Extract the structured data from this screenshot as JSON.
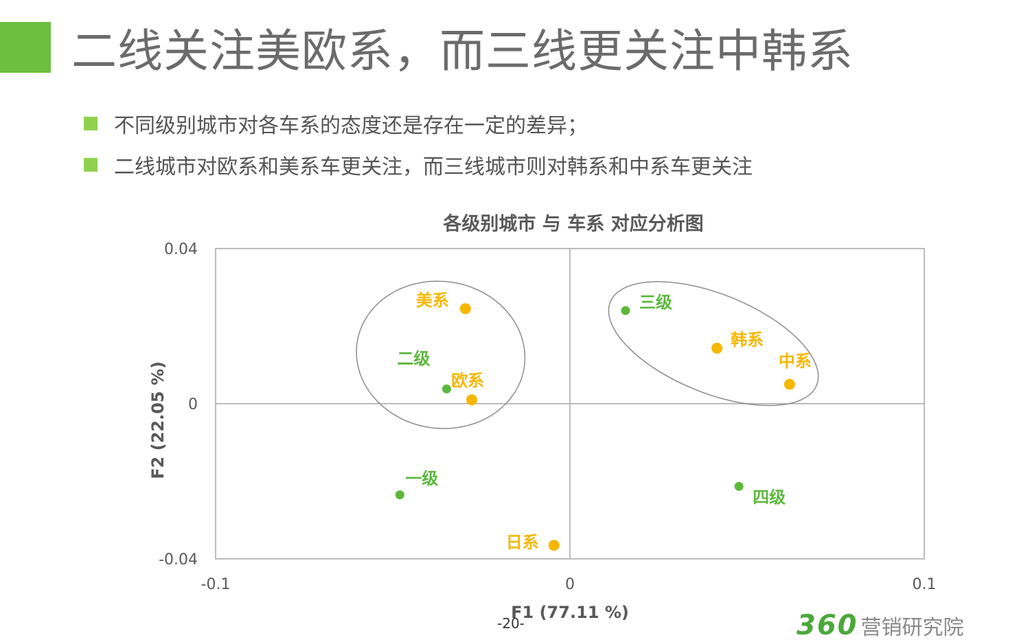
{
  "header": {
    "title": "二线关注美欧系，而三线更关注中韩系"
  },
  "bullets": [
    {
      "text": "不同级别城市对各车系的态度还是存在一定的差异；"
    },
    {
      "text": "二线城市对欧系和美系车更关注，而三线城市则对韩系和中系车更关注"
    }
  ],
  "chart_data": {
    "type": "scatter",
    "title": "各级别城市 与 车系 对应分析图",
    "xlabel": "F1 (77.11 %)",
    "ylabel": "F2 (22.05 %)",
    "xlim": [
      -0.1,
      0.1
    ],
    "ylim": [
      -0.04,
      0.04
    ],
    "x_ticks": [
      "-0.1",
      "0",
      "0.1"
    ],
    "y_ticks": [
      "0.04",
      "0",
      "-0.04"
    ],
    "reference_lines": {
      "x": 0,
      "y": 0
    },
    "series": [
      {
        "color": "#5cb83c",
        "points": [
          {
            "label": "一级",
            "x": -0.048,
            "y": -0.0235
          },
          {
            "label": "二级",
            "x": -0.0348,
            "y": 0.0038
          },
          {
            "label": "三级",
            "x": 0.0157,
            "y": 0.024
          },
          {
            "label": "四级",
            "x": 0.0477,
            "y": -0.0213
          }
        ]
      },
      {
        "color": "#f5b700",
        "points": [
          {
            "label": "美系",
            "x": -0.0295,
            "y": 0.0245
          },
          {
            "label": "欧系",
            "x": -0.0277,
            "y": 0.001
          },
          {
            "label": "日系",
            "x": -0.0045,
            "y": -0.0365
          },
          {
            "label": "韩系",
            "x": 0.0415,
            "y": 0.0143
          },
          {
            "label": "中系",
            "x": 0.062,
            "y": 0.005
          }
        ]
      }
    ],
    "groups": [
      {
        "members": [
          "美系",
          "二级",
          "欧系"
        ]
      },
      {
        "members": [
          "三级",
          "韩系",
          "中系"
        ]
      }
    ]
  },
  "footer": {
    "page_number": "-20-",
    "brand_number": "360",
    "brand_text": "营销研究院"
  }
}
